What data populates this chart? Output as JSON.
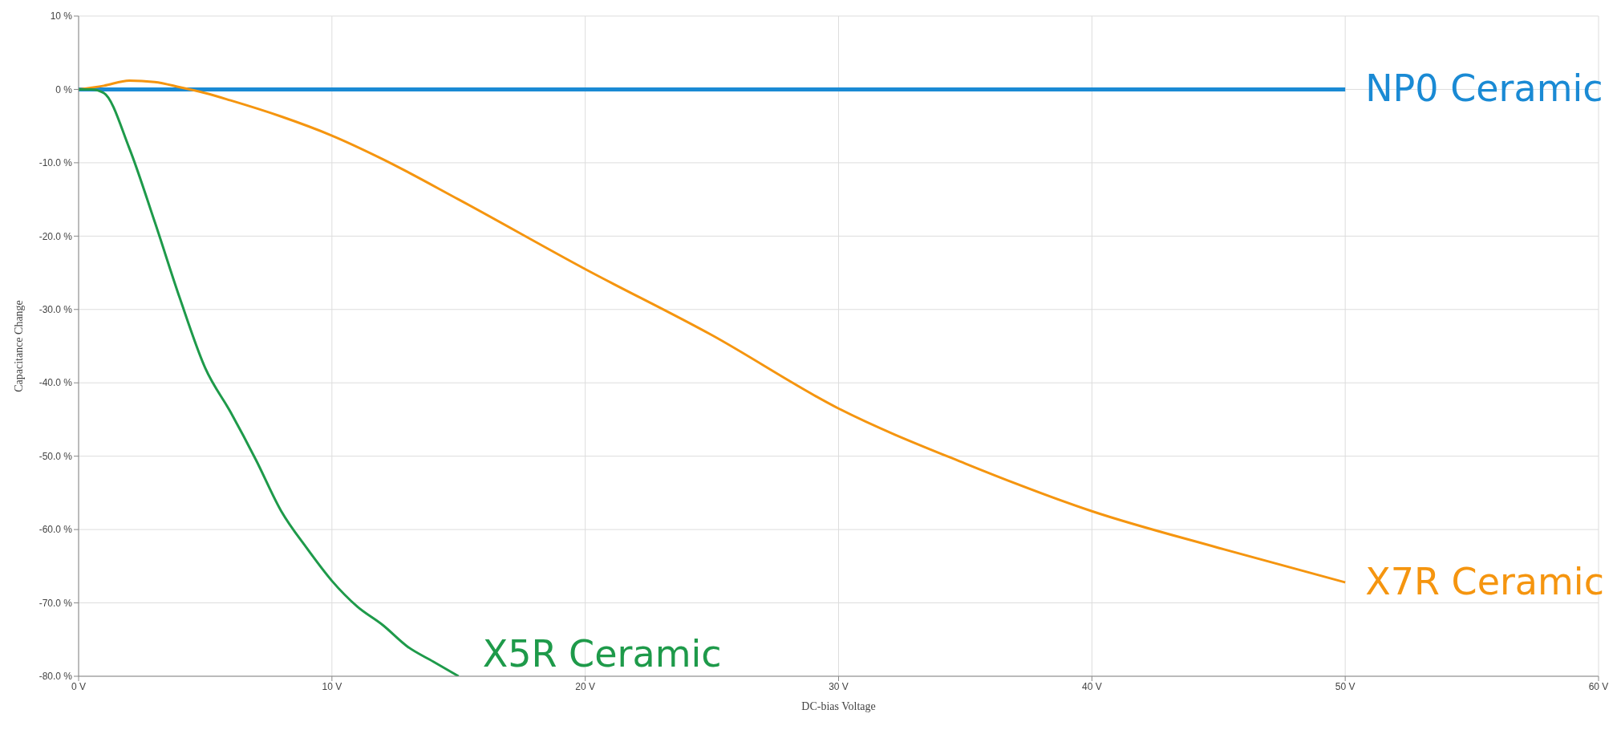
{
  "chart_data": {
    "type": "line",
    "xlabel": "DC-bias Voltage",
    "ylabel": "Capacitance Change",
    "xlim": [
      0,
      60
    ],
    "ylim": [
      -80,
      10
    ],
    "xticks": [
      {
        "value": 0,
        "label": "0 V"
      },
      {
        "value": 10,
        "label": "10 V"
      },
      {
        "value": 20,
        "label": "20 V"
      },
      {
        "value": 30,
        "label": "30 V"
      },
      {
        "value": 40,
        "label": "40 V"
      },
      {
        "value": 50,
        "label": "50 V"
      },
      {
        "value": 60,
        "label": "60 V"
      }
    ],
    "yticks": [
      {
        "value": -80,
        "label": "-80.0 %"
      },
      {
        "value": -70,
        "label": "-70.0 %"
      },
      {
        "value": -60,
        "label": "-60.0 %"
      },
      {
        "value": -50,
        "label": "-50.0 %"
      },
      {
        "value": -40,
        "label": "-40.0 %"
      },
      {
        "value": -30,
        "label": "-30.0 %"
      },
      {
        "value": -20,
        "label": "-20.0 %"
      },
      {
        "value": -10,
        "label": "-10.0 %"
      },
      {
        "value": 0,
        "label": "0 %"
      },
      {
        "value": 10,
        "label": "10 %"
      }
    ],
    "grid": true,
    "marker": "none",
    "line_style": "solid",
    "series": [
      {
        "name": "NP0 Ceramic",
        "color": "#1a8ad4",
        "x": [
          0,
          10,
          20,
          30,
          40,
          50
        ],
        "values": [
          0,
          0,
          0,
          0,
          0,
          0
        ]
      },
      {
        "name": "X7R Ceramic",
        "color": "#f5950f",
        "x": [
          0,
          1,
          2,
          3,
          4,
          5,
          6,
          8,
          10,
          12,
          15,
          20,
          25,
          30,
          35,
          40,
          45,
          50
        ],
        "values": [
          0,
          0.5,
          1.2,
          1,
          0.3,
          -0.5,
          -1.5,
          -3.7,
          -6.3,
          -9.5,
          -15,
          -24.5,
          -33.5,
          -43.5,
          -51,
          -57.5,
          -62.5,
          -67.2
        ]
      },
      {
        "name": "X5R Ceramic",
        "color": "#1e9a4a",
        "x": [
          0,
          0.5,
          1,
          2,
          3,
          4,
          5,
          6,
          7,
          8,
          9,
          10,
          11,
          12,
          13,
          14,
          15
        ],
        "values": [
          0,
          0,
          -0.5,
          -8,
          -18,
          -28.5,
          -38,
          -44,
          -50.5,
          -57.5,
          -62.5,
          -67,
          -70.5,
          -73,
          -76,
          -78,
          -80
        ]
      }
    ]
  }
}
